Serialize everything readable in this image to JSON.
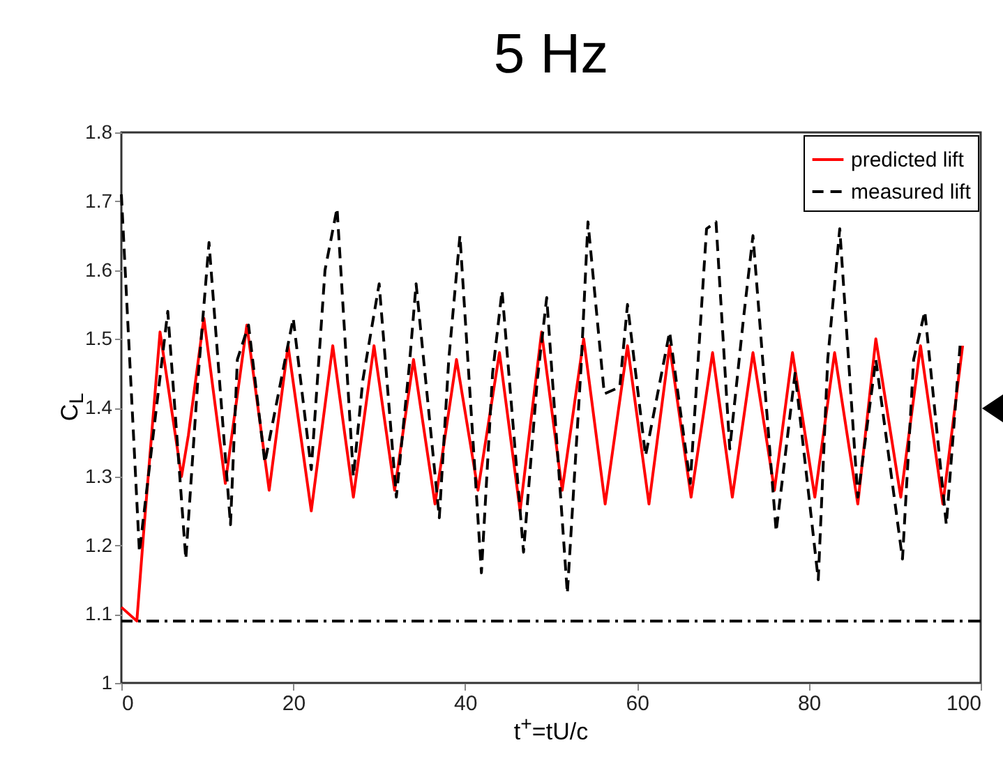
{
  "chart_data": {
    "type": "line",
    "title": "5 Hz",
    "xlabel": "t$^{+}$=tU/c",
    "ylabel": "C$_{L}$",
    "xlim": [
      0,
      100
    ],
    "xticks": [
      0,
      20,
      40,
      60,
      80,
      100
    ],
    "ylim": [
      1,
      1.8
    ],
    "yticks": [
      1,
      1.1,
      1.2,
      1.3,
      1.4,
      1.5,
      1.6,
      1.7,
      1.8
    ],
    "grid": false,
    "legend": "top right",
    "ref_lines": [
      {
        "axis": "y",
        "value": 1.09,
        "color": "#000000"
      }
    ],
    "series": [
      {
        "name": "predicted lift",
        "color": "#ff0000",
        "line_style": "solid",
        "x": [
          0,
          1.8,
          2.6,
          4.5,
          7.0,
          7.8,
          9.6,
          12.1,
          14.6,
          17.2,
          19.4,
          22.1,
          24.6,
          27.0,
          29.4,
          31.8,
          34.0,
          36.5,
          39.0,
          41.5,
          44.0,
          46.4,
          48.9,
          51.3,
          53.8,
          56.3,
          58.9,
          61.4,
          63.8,
          66.3,
          68.8,
          71.1,
          73.5,
          76.0,
          78.1,
          80.7,
          83.0,
          85.7,
          87.8,
          90.7,
          93.0,
          95.6,
          97.9
        ],
        "values": [
          1.11,
          1.09,
          1.22,
          1.51,
          1.3,
          1.36,
          1.53,
          1.29,
          1.52,
          1.28,
          1.49,
          1.25,
          1.49,
          1.27,
          1.49,
          1.28,
          1.47,
          1.26,
          1.47,
          1.28,
          1.48,
          1.25,
          1.51,
          1.28,
          1.5,
          1.26,
          1.49,
          1.26,
          1.49,
          1.27,
          1.48,
          1.27,
          1.48,
          1.28,
          1.48,
          1.27,
          1.48,
          1.26,
          1.5,
          1.27,
          1.49,
          1.26,
          1.49
        ]
      },
      {
        "name": "measured lift",
        "color": "#000000",
        "line_style": "dashed",
        "x": [
          0,
          2.1,
          5.4,
          7.5,
          8.9,
          10.2,
          12.7,
          13.5,
          14.8,
          16.7,
          20.0,
          22.1,
          23.7,
          25.1,
          27.0,
          28.1,
          30.0,
          32.0,
          33.5,
          34.3,
          37.0,
          38.1,
          39.4,
          41.9,
          43.2,
          44.3,
          46.8,
          48.4,
          49.5,
          51.9,
          53.5,
          54.3,
          56.2,
          58.0,
          58.9,
          61.0,
          63.8,
          66.2,
          68.1,
          69.2,
          70.8,
          72.4,
          73.5,
          76.2,
          78.4,
          81.1,
          82.2,
          83.6,
          85.7,
          87.8,
          90.9,
          92.2,
          93.5,
          96.0,
          97.6
        ],
        "values": [
          1.71,
          1.19,
          1.54,
          1.18,
          1.44,
          1.64,
          1.23,
          1.47,
          1.52,
          1.32,
          1.53,
          1.31,
          1.6,
          1.69,
          1.3,
          1.44,
          1.58,
          1.27,
          1.46,
          1.58,
          1.24,
          1.47,
          1.65,
          1.16,
          1.45,
          1.57,
          1.19,
          1.44,
          1.56,
          1.13,
          1.46,
          1.67,
          1.42,
          1.43,
          1.55,
          1.33,
          1.51,
          1.29,
          1.66,
          1.67,
          1.34,
          1.53,
          1.65,
          1.22,
          1.45,
          1.15,
          1.47,
          1.66,
          1.27,
          1.47,
          1.18,
          1.47,
          1.54,
          1.23,
          1.49
        ]
      }
    ]
  }
}
